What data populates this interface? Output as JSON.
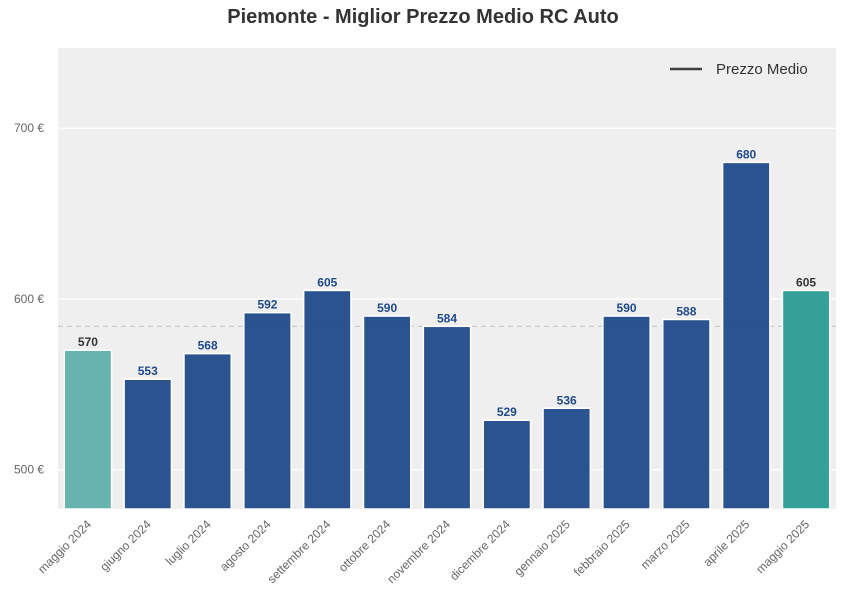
{
  "title": "Piemonte - Miglior Prezzo Medio RC Auto",
  "legend": {
    "label": "Prezzo Medio",
    "position": "top-right"
  },
  "colors": {
    "plot_background": "#efeff0",
    "bar_default": "#1f4a8a",
    "bar_first": "#5fb0aa",
    "bar_last": "#35a097",
    "label_default": "#1f4a8a",
    "label_highlight": "#333333",
    "mean_line": "#c8c8c8"
  },
  "chart_data": {
    "type": "bar",
    "title": "Piemonte - Miglior Prezzo Medio RC Auto",
    "xlabel": "",
    "ylabel": "",
    "categories": [
      "maggio 2024",
      "giugno 2024",
      "luglio 2024",
      "agosto 2024",
      "settembre 2024",
      "ottobre 2024",
      "novembre 2024",
      "dicembre 2024",
      "gennaio 2025",
      "febbraio 2025",
      "marzo 2025",
      "aprile 2025",
      "maggio 2025"
    ],
    "values": [
      570,
      553,
      568,
      592,
      605,
      590,
      584,
      529,
      536,
      590,
      588,
      680,
      605
    ],
    "mean_value": 584,
    "ylim": [
      477,
      747
    ],
    "yticks": [
      500,
      600,
      700
    ],
    "ytick_labels": [
      "500 €",
      "600 €",
      "700 €"
    ],
    "grid": true,
    "legend": "top-right"
  }
}
